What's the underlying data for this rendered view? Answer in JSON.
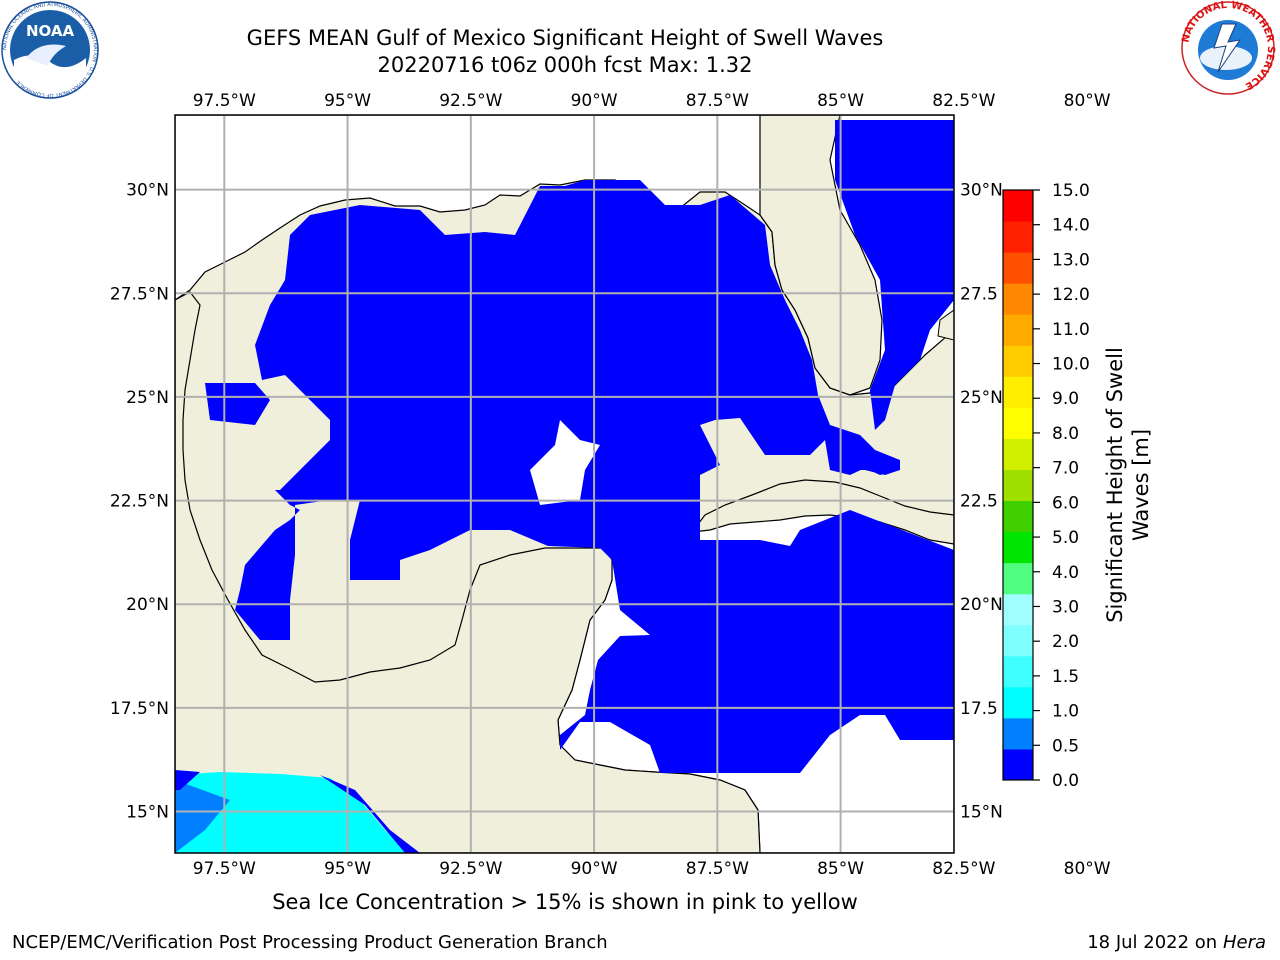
{
  "title": {
    "line1": "GEFS MEAN Gulf of Mexico Significant Height of Swell Waves",
    "line2": "20220716 t06z 000h fcst   Max: 1.32"
  },
  "note": "Sea Ice Concentration > 15% is shown in pink to yellow",
  "footer": {
    "left": "NCEP/EMC/Verification Post Processing Product Generation Branch",
    "right_date": "18 Jul 2022 on",
    "right_host": "Hera"
  },
  "logos": {
    "noaa": {
      "badge": "NOAA",
      "ring_text": "NATIONAL OCEANIC AND ATMOSPHERIC ADMINISTRATION · U.S. DEPARTMENT OF COMMERCE"
    },
    "nws": {
      "ring_text": "NATIONAL WEATHER SERVICE"
    }
  },
  "map": {
    "lon_range": [
      -98.5,
      -82.7
    ],
    "lat_range": [
      14.0,
      31.8
    ],
    "lon_ticks": [
      "97.5°W",
      "95°W",
      "92.5°W",
      "90°W",
      "87.5°W",
      "85°W",
      "82.5°W",
      "80°W"
    ],
    "lat_ticks_left": [
      "30°N",
      "27.5°N",
      "25°N",
      "22.5°N",
      "20°N",
      "17.5°N",
      "15°N"
    ],
    "lat_ticks_right": [
      "30°N",
      "27.5",
      "25°N",
      "22.5",
      "20°N",
      "17.5",
      "15°N"
    ],
    "grid": true,
    "colors": {
      "land": "#efefdc",
      "water_dominant": "#0000ff",
      "water_low": "#ffffff",
      "pacific_cyan": "#00ffff",
      "pacific_blue": "#0080ff"
    }
  },
  "colorbar": {
    "label": "Significant Height of Swell Waves [m]",
    "label_line1": "Significant Height of Swell",
    "label_line2": "Waves [m]",
    "ticks": [
      "0.0",
      "0.5",
      "1.0",
      "1.5",
      "2.0",
      "3.0",
      "4.0",
      "5.0",
      "6.0",
      "7.0",
      "8.0",
      "9.0",
      "10.0",
      "11.0",
      "12.0",
      "13.0",
      "14.0",
      "15.0"
    ],
    "colors": [
      "#0000ff",
      "#0080ff",
      "#00ffff",
      "#40ffff",
      "#80ffff",
      "#a0ffff",
      "#50ff80",
      "#00e600",
      "#40d000",
      "#a0e000",
      "#d0f000",
      "#ffff00",
      "#ffee00",
      "#ffcc00",
      "#ffaa00",
      "#ff8800",
      "#ff5000",
      "#ff2000",
      "#ff0000"
    ]
  }
}
